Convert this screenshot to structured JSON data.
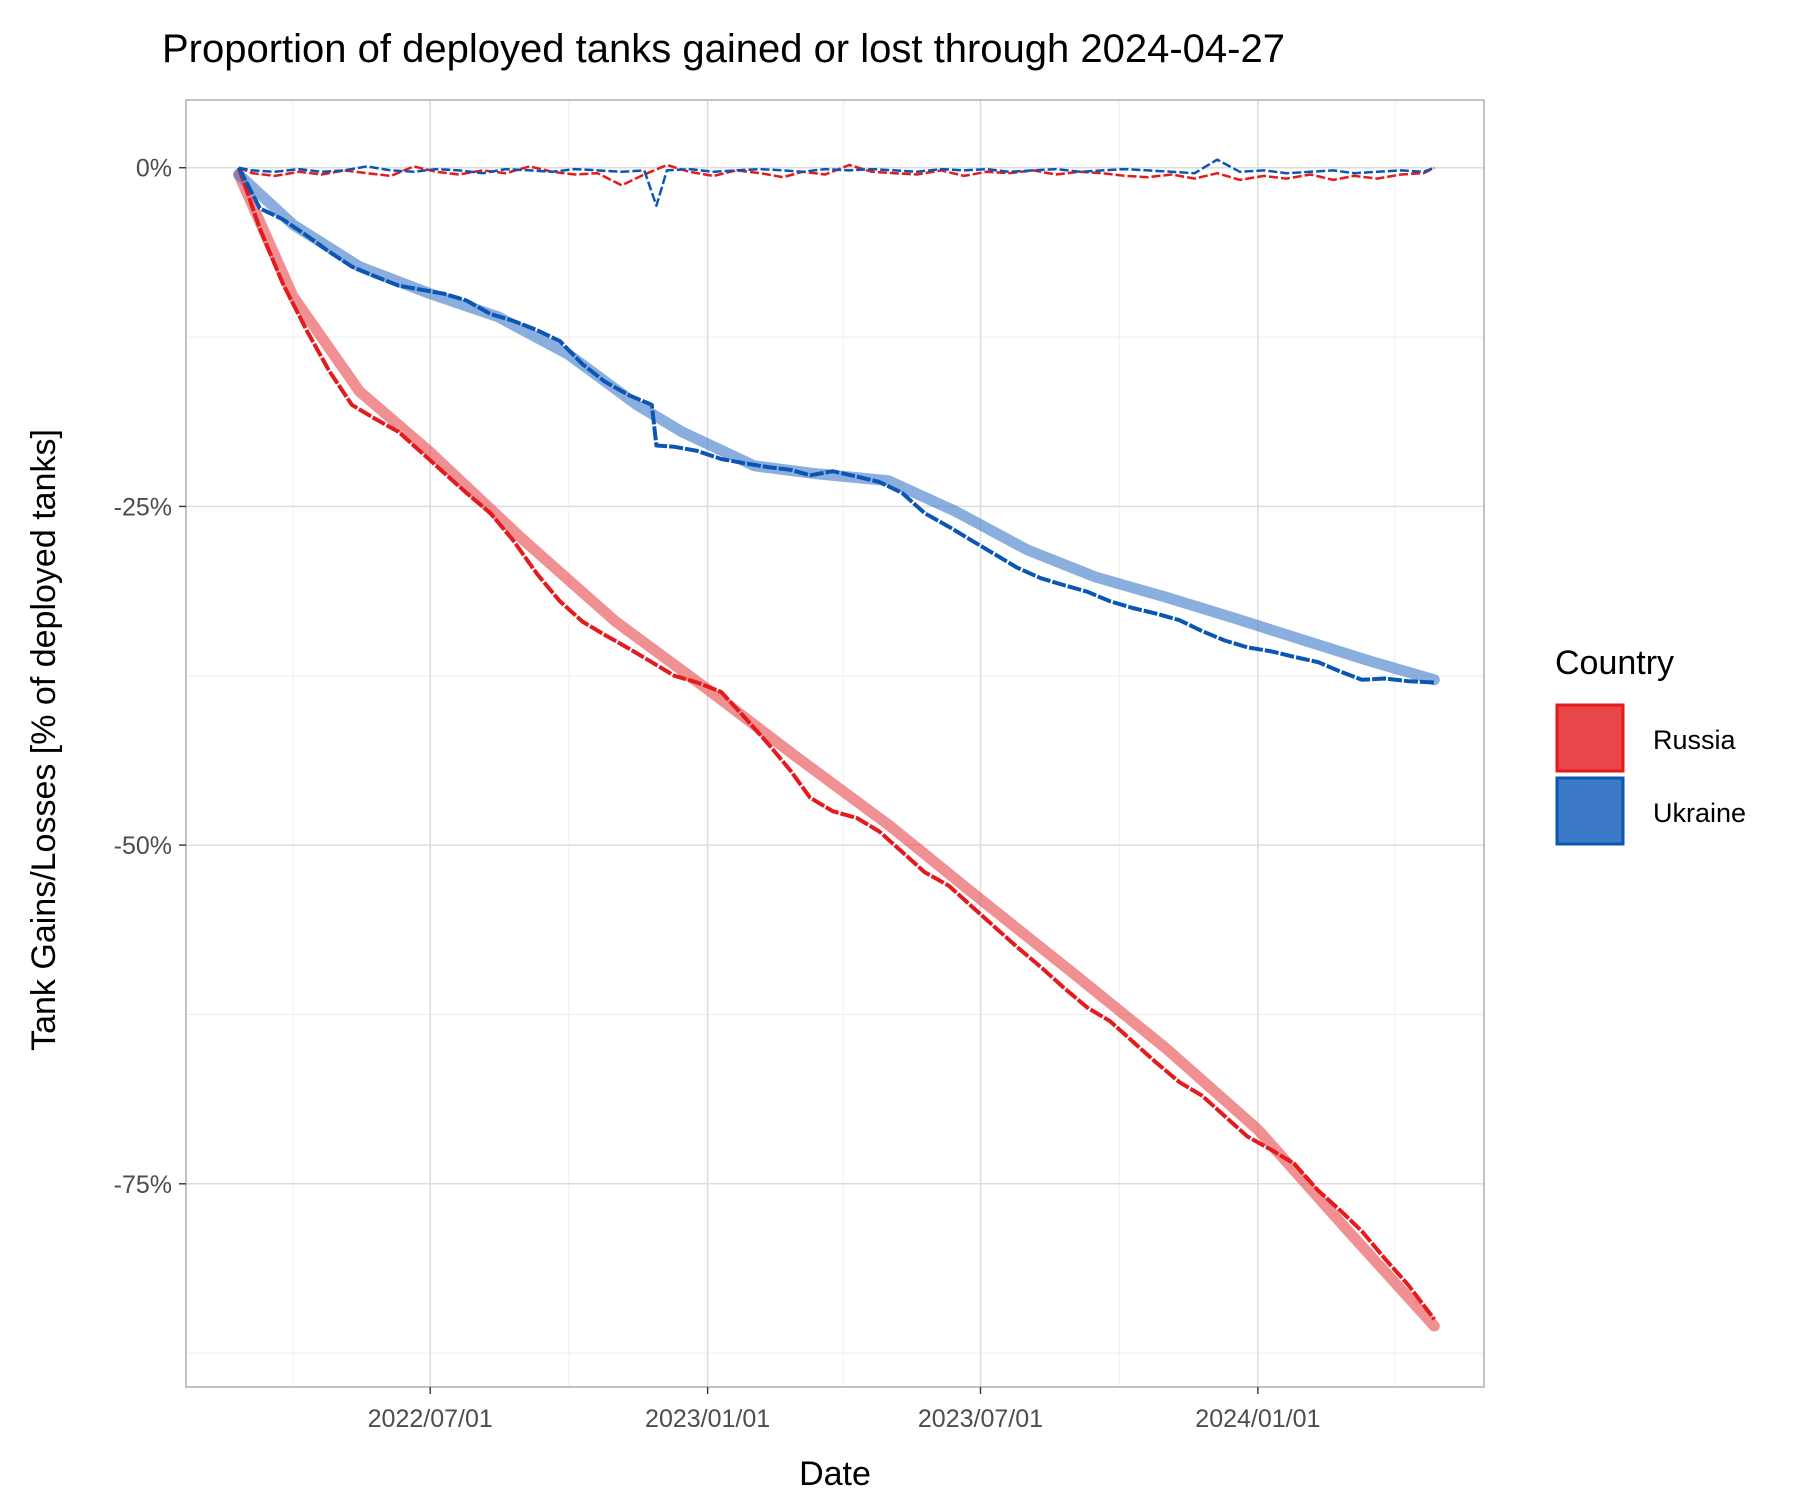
{
  "chart_data": {
    "type": "line",
    "title": "Proportion of deployed tanks gained or lost through 2024-04-27",
    "xlabel": "Date",
    "ylabel": "Tank Gains/Losses [% of deployed tanks]",
    "x_range": [
      "2022-02-24",
      "2024-04-27"
    ],
    "xlim": [
      "2022-01-20",
      "2024-05-30"
    ],
    "ylim": [
      -90,
      5
    ],
    "x_ticks": [
      "2022-07-01",
      "2023-01-01",
      "2023-07-01",
      "2024-01-01"
    ],
    "x_tick_labels": [
      "2022/07/01",
      "2023/01/01",
      "2023/07/01",
      "2024/01/01"
    ],
    "y_ticks": [
      0,
      -25,
      -50,
      -75
    ],
    "y_tick_labels": [
      "0%",
      "-25%",
      "-50%",
      "-75%"
    ],
    "grid": true,
    "legend": {
      "title": "Country",
      "position": "right",
      "entries": [
        "Russia",
        "Ukraine"
      ]
    },
    "colors": {
      "Russia": "#e41a1c",
      "Ukraine": "#0b56b5",
      "Russia_fill": "#e8464b",
      "Ukraine_fill": "#3c7ac8"
    },
    "series": [
      {
        "name": "Russia",
        "cumulative": {
          "x": [
            "2022-02-24",
            "2022-03-10",
            "2022-03-25",
            "2022-04-10",
            "2022-04-25",
            "2022-05-10",
            "2022-05-25",
            "2022-06-10",
            "2022-06-25",
            "2022-07-10",
            "2022-07-25",
            "2022-08-10",
            "2022-08-25",
            "2022-09-10",
            "2022-09-25",
            "2022-10-10",
            "2022-10-25",
            "2022-11-10",
            "2022-11-25",
            "2022-12-10",
            "2022-12-25",
            "2023-01-10",
            "2023-01-25",
            "2023-02-10",
            "2023-02-25",
            "2023-03-10",
            "2023-03-25",
            "2023-04-10",
            "2023-04-25",
            "2023-05-10",
            "2023-05-25",
            "2023-06-10",
            "2023-06-25",
            "2023-07-10",
            "2023-07-25",
            "2023-08-10",
            "2023-08-25",
            "2023-09-10",
            "2023-09-25",
            "2023-10-10",
            "2023-10-25",
            "2023-11-10",
            "2023-11-25",
            "2023-12-10",
            "2023-12-25",
            "2024-01-10",
            "2024-01-25",
            "2024-02-10",
            "2024-02-25",
            "2024-03-10",
            "2024-03-25",
            "2024-04-10",
            "2024-04-27"
          ],
          "y": [
            0,
            -4.5,
            -8.5,
            -12,
            -15,
            -17.5,
            -18.5,
            -19.5,
            -21,
            -22.5,
            -24,
            -25.5,
            -27.5,
            -30,
            -32,
            -33.5,
            -34.5,
            -35.5,
            -36.5,
            -37.5,
            -38,
            -38.7,
            -40.5,
            -42.5,
            -44.5,
            -46.5,
            -47.5,
            -48,
            -49,
            -50.5,
            -52,
            -53,
            -54.5,
            -56,
            -57.5,
            -59,
            -60.5,
            -62,
            -63,
            -64.5,
            -66,
            -67.5,
            -68.5,
            -70,
            -71.5,
            -72.5,
            -73.5,
            -75.5,
            -77,
            -78.5,
            -80.5,
            -82.5,
            -85
          ]
        },
        "trend": {
          "x": [
            "2022-02-24",
            "2022-04-01",
            "2022-05-15",
            "2022-07-01",
            "2022-09-01",
            "2022-11-01",
            "2023-01-01",
            "2023-03-01",
            "2023-05-01",
            "2023-07-01",
            "2023-09-01",
            "2023-11-01",
            "2024-01-01",
            "2024-03-01",
            "2024-04-27"
          ],
          "y": [
            -0.5,
            -9.5,
            -16.5,
            -21,
            -27.5,
            -33.5,
            -38.5,
            -43.5,
            -48.5,
            -54,
            -59.5,
            -65,
            -71,
            -78.5,
            -85.5
          ]
        },
        "daily": {
          "x": [
            "2022-03-05",
            "2022-03-20",
            "2022-04-05",
            "2022-04-20",
            "2022-05-05",
            "2022-05-20",
            "2022-06-05",
            "2022-06-20",
            "2022-07-05",
            "2022-07-20",
            "2022-08-05",
            "2022-08-20",
            "2022-09-05",
            "2022-09-20",
            "2022-10-05",
            "2022-10-20",
            "2022-11-05",
            "2022-11-20",
            "2022-12-05",
            "2022-12-20",
            "2023-01-05",
            "2023-01-20",
            "2023-02-05",
            "2023-02-20",
            "2023-03-05",
            "2023-03-20",
            "2023-04-05",
            "2023-04-20",
            "2023-05-05",
            "2023-05-20",
            "2023-06-05",
            "2023-06-20",
            "2023-07-05",
            "2023-07-20",
            "2023-08-05",
            "2023-08-20",
            "2023-09-05",
            "2023-09-20",
            "2023-10-05",
            "2023-10-20",
            "2023-11-05",
            "2023-11-20",
            "2023-12-05",
            "2023-12-20",
            "2024-01-05",
            "2024-01-20",
            "2024-02-05",
            "2024-02-20",
            "2024-03-05",
            "2024-03-20",
            "2024-04-05",
            "2024-04-20"
          ],
          "y": [
            -0.4,
            -0.6,
            -0.3,
            -0.5,
            -0.2,
            -0.4,
            -0.6,
            0.1,
            -0.3,
            -0.5,
            -0.2,
            -0.4,
            0.1,
            -0.3,
            -0.5,
            -0.4,
            -1.3,
            -0.5,
            0.2,
            -0.3,
            -0.6,
            -0.2,
            -0.4,
            -0.7,
            -0.3,
            -0.5,
            0.2,
            -0.3,
            -0.4,
            -0.5,
            -0.2,
            -0.6,
            -0.3,
            -0.4,
            -0.2,
            -0.5,
            -0.3,
            -0.4,
            -0.6,
            -0.7,
            -0.5,
            -0.8,
            -0.4,
            -0.9,
            -0.6,
            -0.8,
            -0.5,
            -0.9,
            -0.6,
            -0.8,
            -0.5,
            -0.4
          ]
        }
      },
      {
        "name": "Ukraine",
        "cumulative": {
          "x": [
            "2022-02-24",
            "2022-03-10",
            "2022-03-25",
            "2022-04-10",
            "2022-04-25",
            "2022-05-10",
            "2022-05-25",
            "2022-06-10",
            "2022-06-25",
            "2022-07-10",
            "2022-07-25",
            "2022-08-10",
            "2022-08-25",
            "2022-09-10",
            "2022-09-25",
            "2022-10-10",
            "2022-10-25",
            "2022-11-10",
            "2022-11-25",
            "2022-11-28",
            "2022-12-10",
            "2022-12-25",
            "2023-01-10",
            "2023-01-25",
            "2023-02-10",
            "2023-02-25",
            "2023-03-10",
            "2023-03-25",
            "2023-04-10",
            "2023-04-25",
            "2023-05-10",
            "2023-05-25",
            "2023-06-10",
            "2023-06-25",
            "2023-07-10",
            "2023-07-25",
            "2023-08-10",
            "2023-08-25",
            "2023-09-10",
            "2023-09-25",
            "2023-10-10",
            "2023-10-25",
            "2023-11-10",
            "2023-11-25",
            "2023-12-10",
            "2023-12-25",
            "2024-01-10",
            "2024-01-25",
            "2024-02-10",
            "2024-02-25",
            "2024-03-10",
            "2024-03-25",
            "2024-04-10",
            "2024-04-27"
          ],
          "y": [
            0,
            -3,
            -3.8,
            -5,
            -6.2,
            -7.3,
            -8,
            -8.7,
            -9,
            -9.3,
            -9.8,
            -10.8,
            -11.3,
            -12,
            -12.8,
            -14.5,
            -15.8,
            -16.8,
            -17.5,
            -20.5,
            -20.6,
            -20.9,
            -21.5,
            -21.8,
            -22.1,
            -22.3,
            -22.7,
            -22.4,
            -22.8,
            -23.2,
            -24,
            -25.5,
            -26.5,
            -27.5,
            -28.5,
            -29.5,
            -30.3,
            -30.8,
            -31.3,
            -32,
            -32.5,
            -32.9,
            -33.4,
            -34.2,
            -34.9,
            -35.4,
            -35.7,
            -36.1,
            -36.5,
            -37.2,
            -37.8,
            -37.7,
            -37.9,
            -38
          ]
        },
        "trend": {
          "x": [
            "2022-02-24",
            "2022-04-01",
            "2022-05-15",
            "2022-07-01",
            "2022-08-15",
            "2022-10-01",
            "2022-11-15",
            "2022-12-15",
            "2023-02-01",
            "2023-03-15",
            "2023-05-01",
            "2023-06-15",
            "2023-08-01",
            "2023-09-15",
            "2023-11-01",
            "2023-12-15",
            "2024-02-01",
            "2024-03-15",
            "2024-04-27"
          ],
          "y": [
            -0.5,
            -4.2,
            -7.3,
            -9.3,
            -11,
            -13.8,
            -17.5,
            -19.5,
            -22,
            -22.6,
            -23.1,
            -25.4,
            -28.2,
            -30.2,
            -31.7,
            -33.2,
            -34.9,
            -36.4,
            -37.8
          ]
        },
        "daily": {
          "x": [
            "2022-03-05",
            "2022-03-20",
            "2022-04-05",
            "2022-04-20",
            "2022-05-05",
            "2022-05-20",
            "2022-06-05",
            "2022-06-20",
            "2022-07-05",
            "2022-07-20",
            "2022-08-05",
            "2022-08-20",
            "2022-09-05",
            "2022-09-20",
            "2022-10-05",
            "2022-10-20",
            "2022-11-05",
            "2022-11-20",
            "2022-11-28",
            "2022-12-05",
            "2022-12-20",
            "2023-01-05",
            "2023-01-20",
            "2023-02-05",
            "2023-02-20",
            "2023-03-05",
            "2023-03-20",
            "2023-04-05",
            "2023-04-20",
            "2023-05-05",
            "2023-05-20",
            "2023-06-05",
            "2023-06-20",
            "2023-07-05",
            "2023-07-20",
            "2023-08-05",
            "2023-08-20",
            "2023-09-05",
            "2023-09-20",
            "2023-10-05",
            "2023-10-20",
            "2023-11-05",
            "2023-11-20",
            "2023-12-05",
            "2023-12-20",
            "2024-01-05",
            "2024-01-20",
            "2024-02-05",
            "2024-02-20",
            "2024-03-05",
            "2024-03-20",
            "2024-04-05",
            "2024-04-20"
          ],
          "y": [
            -0.2,
            -0.3,
            -0.1,
            -0.3,
            -0.2,
            0.1,
            -0.2,
            -0.3,
            -0.1,
            -0.2,
            -0.4,
            -0.1,
            -0.2,
            -0.3,
            -0.1,
            -0.2,
            -0.3,
            -0.2,
            -2.8,
            -0.2,
            -0.1,
            -0.3,
            -0.2,
            -0.1,
            -0.2,
            -0.3,
            -0.1,
            -0.2,
            -0.1,
            -0.2,
            -0.3,
            -0.1,
            -0.2,
            -0.1,
            -0.3,
            -0.2,
            -0.1,
            -0.3,
            -0.2,
            -0.1,
            -0.2,
            -0.3,
            -0.4,
            0.6,
            -0.3,
            -0.2,
            -0.4,
            -0.3,
            -0.2,
            -0.4,
            -0.3,
            -0.2,
            -0.3
          ]
        }
      }
    ]
  }
}
